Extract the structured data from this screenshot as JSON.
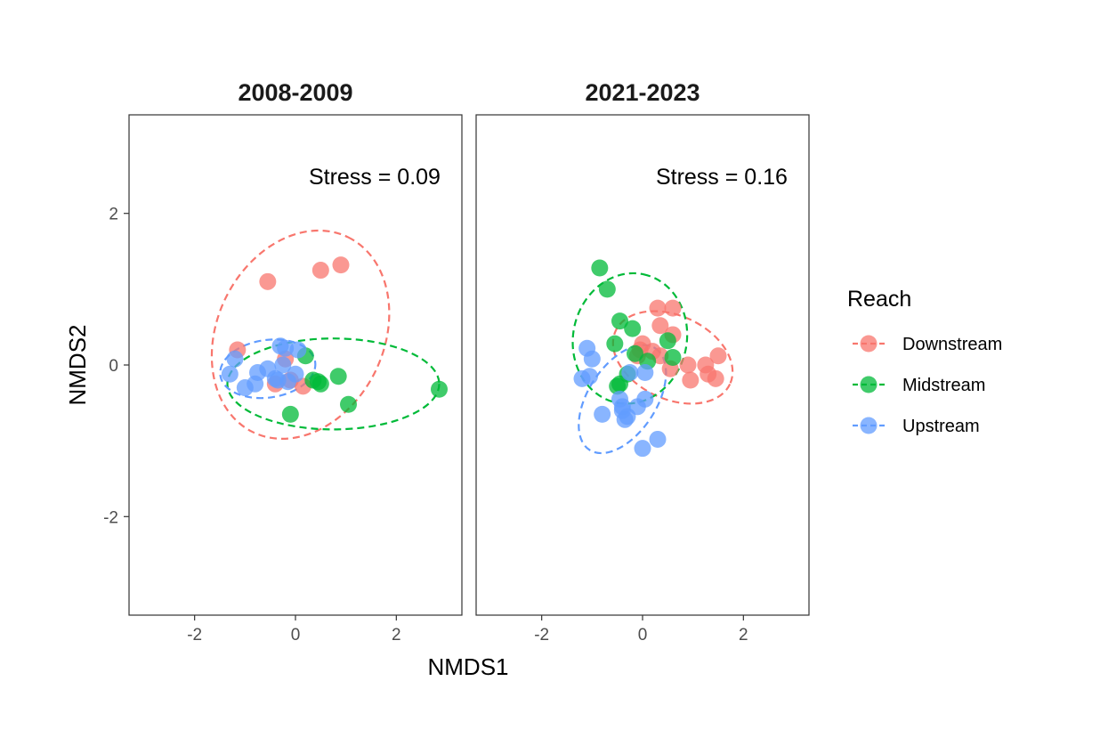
{
  "chart_data": {
    "type": "scatter",
    "xlabel": "NMDS1",
    "ylabel": "NMDS2",
    "xlim": [
      -3.3,
      3.3
    ],
    "ylim": [
      -3.3,
      3.3
    ],
    "x_ticks": [
      -2,
      0,
      2
    ],
    "y_ticks": [
      -2,
      0,
      2
    ],
    "x_tick_labels": [
      "-2",
      "0",
      "2"
    ],
    "y_tick_labels": [
      "-2",
      "0",
      "2"
    ],
    "grid": false,
    "legend": {
      "title": "Reach",
      "placement": "right",
      "entries": [
        {
          "label": "Downstream",
          "color": "#F8766D"
        },
        {
          "label": "Midstream",
          "color": "#00BA38"
        },
        {
          "label": "Upstream",
          "color": "#619CFF"
        }
      ]
    },
    "panels": [
      {
        "title": "2008-2009",
        "stress_label": "Stress = 0.09",
        "series": [
          {
            "name": "Downstream",
            "points": [
              [
                -0.55,
                1.1
              ],
              [
                0.5,
                1.25
              ],
              [
                0.9,
                1.32
              ],
              [
                -1.15,
                0.2
              ],
              [
                -0.4,
                -0.25
              ],
              [
                0.15,
                -0.28
              ],
              [
                -0.2,
                0.08
              ],
              [
                -0.1,
                -0.2
              ]
            ],
            "ellipse": {
              "cx": 0.1,
              "cy": 0.4,
              "rx": 2.15,
              "ry": 1.1,
              "angle_deg": -64
            }
          },
          {
            "name": "Midstream",
            "points": [
              [
                0.2,
                0.12
              ],
              [
                0.85,
                -0.15
              ],
              [
                -0.1,
                -0.65
              ],
              [
                1.05,
                -0.52
              ],
              [
                2.85,
                -0.32
              ],
              [
                0.35,
                -0.2
              ],
              [
                0.45,
                -0.22
              ],
              [
                0.5,
                -0.25
              ]
            ],
            "ellipse": {
              "cx": 0.75,
              "cy": -0.25,
              "rx": 2.1,
              "ry": 0.6,
              "angle_deg": 0
            }
          },
          {
            "name": "Upstream",
            "points": [
              [
                -1.2,
                0.08
              ],
              [
                -1.3,
                -0.12
              ],
              [
                -1.0,
                -0.3
              ],
              [
                -0.8,
                -0.25
              ],
              [
                -0.75,
                -0.1
              ],
              [
                -0.55,
                -0.05
              ],
              [
                -0.4,
                -0.18
              ],
              [
                -0.35,
                -0.2
              ],
              [
                -0.3,
                0.25
              ],
              [
                -0.2,
                0.22
              ],
              [
                -0.15,
                -0.22
              ],
              [
                0.0,
                -0.12
              ],
              [
                0.05,
                0.2
              ],
              [
                -0.25,
                0.0
              ]
            ],
            "ellipse": {
              "cx": -0.55,
              "cy": -0.05,
              "rx": 0.95,
              "ry": 0.38,
              "angle_deg": -8
            }
          }
        ]
      },
      {
        "title": "2021-2023",
        "stress_label": "Stress = 0.16",
        "series": [
          {
            "name": "Downstream",
            "points": [
              [
                0.3,
                0.75
              ],
              [
                0.6,
                0.75
              ],
              [
                0.35,
                0.52
              ],
              [
                0.6,
                0.4
              ],
              [
                0.0,
                0.28
              ],
              [
                -0.05,
                0.2
              ],
              [
                0.2,
                0.18
              ],
              [
                0.35,
                0.12
              ],
              [
                0.55,
                -0.05
              ],
              [
                0.9,
                0.0
              ],
              [
                0.95,
                -0.2
              ],
              [
                1.25,
                0.0
              ],
              [
                1.3,
                -0.12
              ],
              [
                1.45,
                -0.18
              ],
              [
                1.5,
                0.12
              ],
              [
                -0.1,
                0.12
              ]
            ],
            "ellipse": {
              "cx": 0.6,
              "cy": 0.1,
              "rx": 1.25,
              "ry": 0.55,
              "angle_deg": 25
            }
          },
          {
            "name": "Midstream",
            "points": [
              [
                -0.85,
                1.28
              ],
              [
                -0.7,
                1.0
              ],
              [
                -0.45,
                0.58
              ],
              [
                -0.2,
                0.48
              ],
              [
                -0.55,
                0.28
              ],
              [
                0.5,
                0.32
              ],
              [
                -0.15,
                0.15
              ],
              [
                0.6,
                0.1
              ],
              [
                0.1,
                0.05
              ],
              [
                -0.3,
                -0.12
              ],
              [
                -0.45,
                -0.25
              ],
              [
                -0.5,
                -0.28
              ]
            ],
            "ellipse": {
              "cx": -0.25,
              "cy": 0.35,
              "rx": 1.3,
              "ry": 0.75,
              "angle_deg": -78
            }
          },
          {
            "name": "Upstream",
            "points": [
              [
                -1.1,
                0.22
              ],
              [
                -1.0,
                0.08
              ],
              [
                -1.05,
                -0.15
              ],
              [
                -1.2,
                -0.18
              ],
              [
                -0.45,
                -0.45
              ],
              [
                -0.4,
                -0.55
              ],
              [
                -0.1,
                -0.55
              ],
              [
                0.05,
                -0.45
              ],
              [
                -0.8,
                -0.65
              ],
              [
                -0.35,
                -0.72
              ],
              [
                -0.3,
                -0.68
              ],
              [
                0.0,
                -1.1
              ],
              [
                0.3,
                -0.98
              ],
              [
                -0.25,
                -0.1
              ],
              [
                0.05,
                -0.1
              ],
              [
                -0.4,
                -0.6
              ]
            ],
            "ellipse": {
              "cx": -0.4,
              "cy": -0.45,
              "rx": 1.2,
              "ry": 0.45,
              "angle_deg": -57
            }
          }
        ]
      }
    ]
  }
}
